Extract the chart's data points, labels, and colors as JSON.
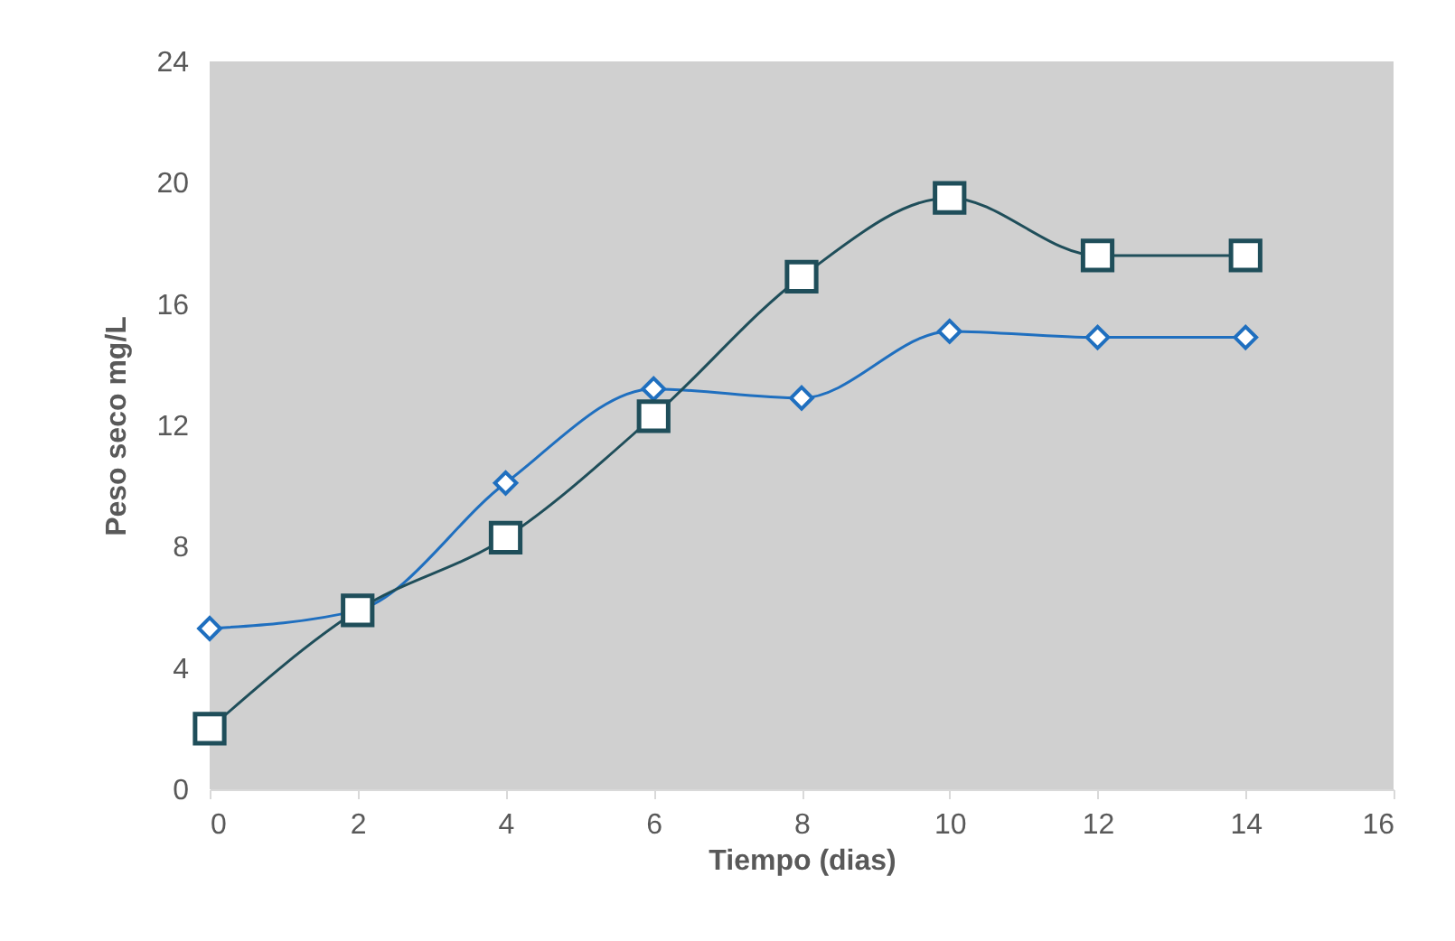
{
  "chart_data": {
    "type": "line",
    "xlabel": "Tiempo (dias)",
    "ylabel": "Peso seco mg/L",
    "x": [
      0,
      2,
      4,
      6,
      8,
      10,
      12,
      14
    ],
    "series": [
      {
        "color": "#1f6fbf",
        "marker": "diamond",
        "values": [
          5.3,
          5.9,
          10.1,
          13.2,
          12.9,
          15.1,
          14.9,
          14.9
        ]
      },
      {
        "color": "#1f4e5a",
        "marker": "square",
        "values": [
          2.0,
          5.9,
          8.3,
          12.3,
          16.9,
          19.5,
          17.6,
          17.6
        ]
      }
    ],
    "xlim": [
      0,
      16
    ],
    "xticks": [
      0,
      2,
      4,
      6,
      8,
      10,
      12,
      14,
      16
    ],
    "ylim": [
      0,
      24
    ],
    "yticks": [
      0,
      4,
      8,
      12,
      16,
      20,
      24
    ],
    "grid": false,
    "line_style": "solid"
  }
}
